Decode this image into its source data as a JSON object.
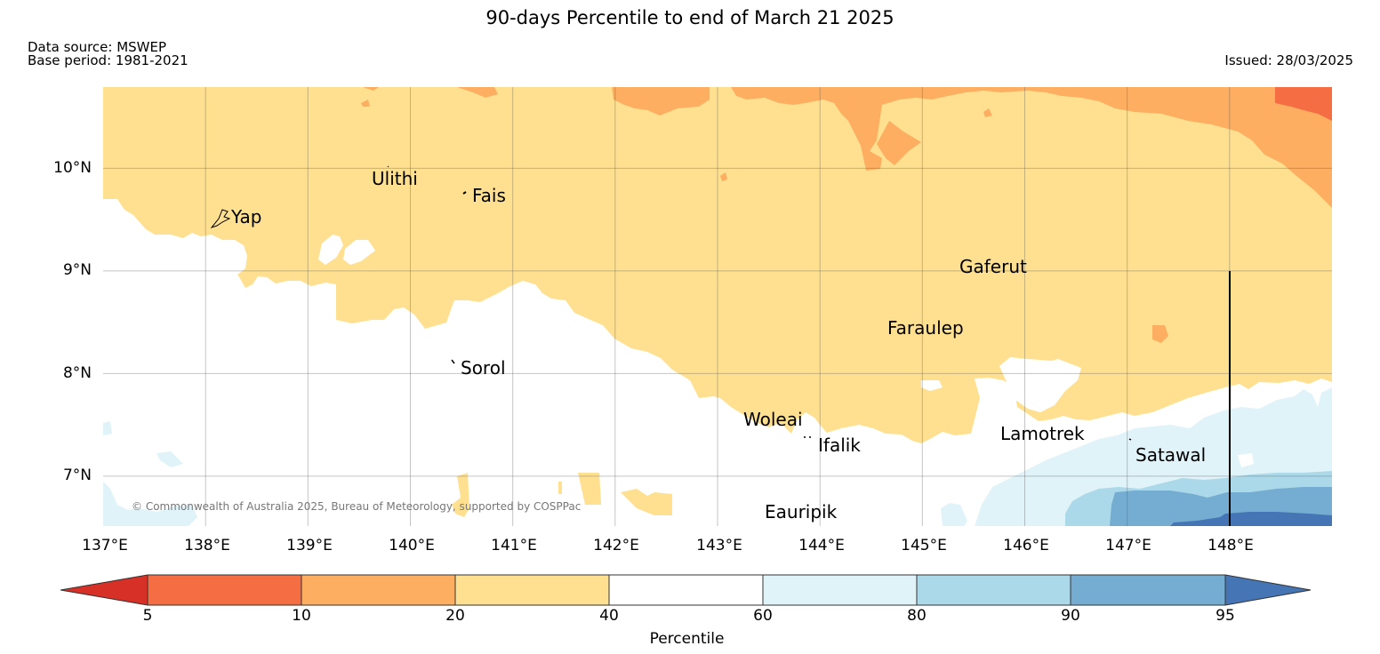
{
  "title": "90-days Percentile to end of March 21 2025",
  "data_source": "Data source: MSWEP",
  "base_period": "Base period: 1981-2021",
  "issued": "Issued: 28/03/2025",
  "copyright": "© Commonwealth of Australia 2025, Bureau of Meteorology, supported by COSPPac",
  "lat_ticks": [
    "10°N",
    "9°N",
    "8°N",
    "7°N"
  ],
  "lon_ticks": [
    "137°E",
    "138°E",
    "139°E",
    "140°E",
    "141°E",
    "142°E",
    "143°E",
    "144°E",
    "145°E",
    "146°E",
    "147°E",
    "148°E"
  ],
  "places": [
    {
      "name": "Ulithi",
      "lon": 139.75,
      "lat": 10.0
    },
    {
      "name": "Fais",
      "lon": 140.52,
      "lat": 9.76
    },
    {
      "name": "Yap",
      "lon": 138.13,
      "lat": 9.52
    },
    {
      "name": "Gaferut",
      "lon": 146.0,
      "lat": 9.0
    },
    {
      "name": "Faraulep",
      "lon": 144.6,
      "lat": 8.44
    },
    {
      "name": "Sorol",
      "lon": 140.42,
      "lat": 8.12
    },
    {
      "name": "Woleai",
      "lon": 143.9,
      "lat": 7.49
    },
    {
      "name": "Ifalik",
      "lon": 144.44,
      "lat": 7.33
    },
    {
      "name": "Lamotrek",
      "lon": 146.0,
      "lat": 7.3
    },
    {
      "name": "Satawal",
      "lon": 147.0,
      "lat": 7.26
    },
    {
      "name": "Eauripik",
      "lon": 143.96,
      "lat": 6.68
    }
  ],
  "colorbar": {
    "label": "Percentile",
    "ticks": [
      "5",
      "10",
      "20",
      "40",
      "60",
      "80",
      "90",
      "95"
    ],
    "colors": {
      "lt5": "#d73027",
      "p5_10": "#f46d43",
      "p10_20": "#fdae61",
      "p20_40": "#fee090",
      "p40_60": "#ffffff",
      "p60_80": "#e0f3f8",
      "p80_90": "#abd9e9",
      "p90_95": "#74add1",
      "gt95": "#4575b4"
    }
  }
}
